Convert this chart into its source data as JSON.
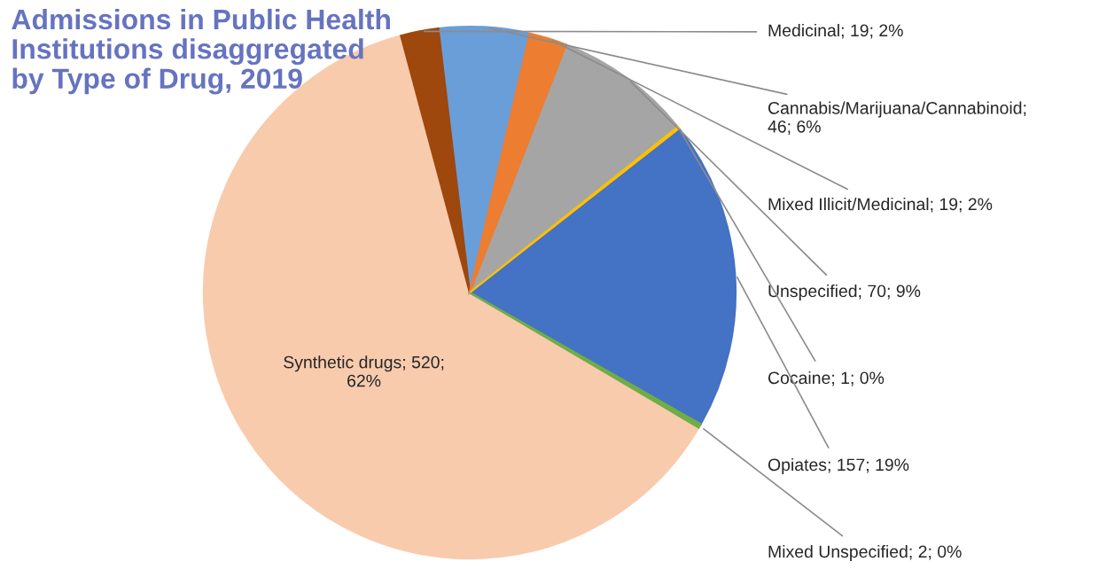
{
  "chart_data": {
    "type": "pie",
    "title": "Admissions in Public Health\nInstitutions disaggregated\nby Type of Drug, 2019",
    "categories": [
      "Medicinal; 19; 2%",
      "Cannabis/Marijuana/Cannabinoid;\n46; 6%",
      "Mixed Illicit/Medicinal; 19; 2%",
      "Unspecified; 70; 9%",
      "Cocaine; 1; 0%",
      "Opiates; 157; 19%",
      "Mixed Unspecified; 2; 0%",
      "Synthetic drugs; 520;\n62%"
    ],
    "values": [
      19,
      46,
      19,
      70,
      1,
      157,
      2,
      520
    ],
    "colors": [
      "#9e480e",
      "#6a9ed8",
      "#ed7d31",
      "#a5a5a5",
      "#ffc000",
      "#4472c4",
      "#70ad47",
      "#f8cbad"
    ],
    "legend": false
  }
}
